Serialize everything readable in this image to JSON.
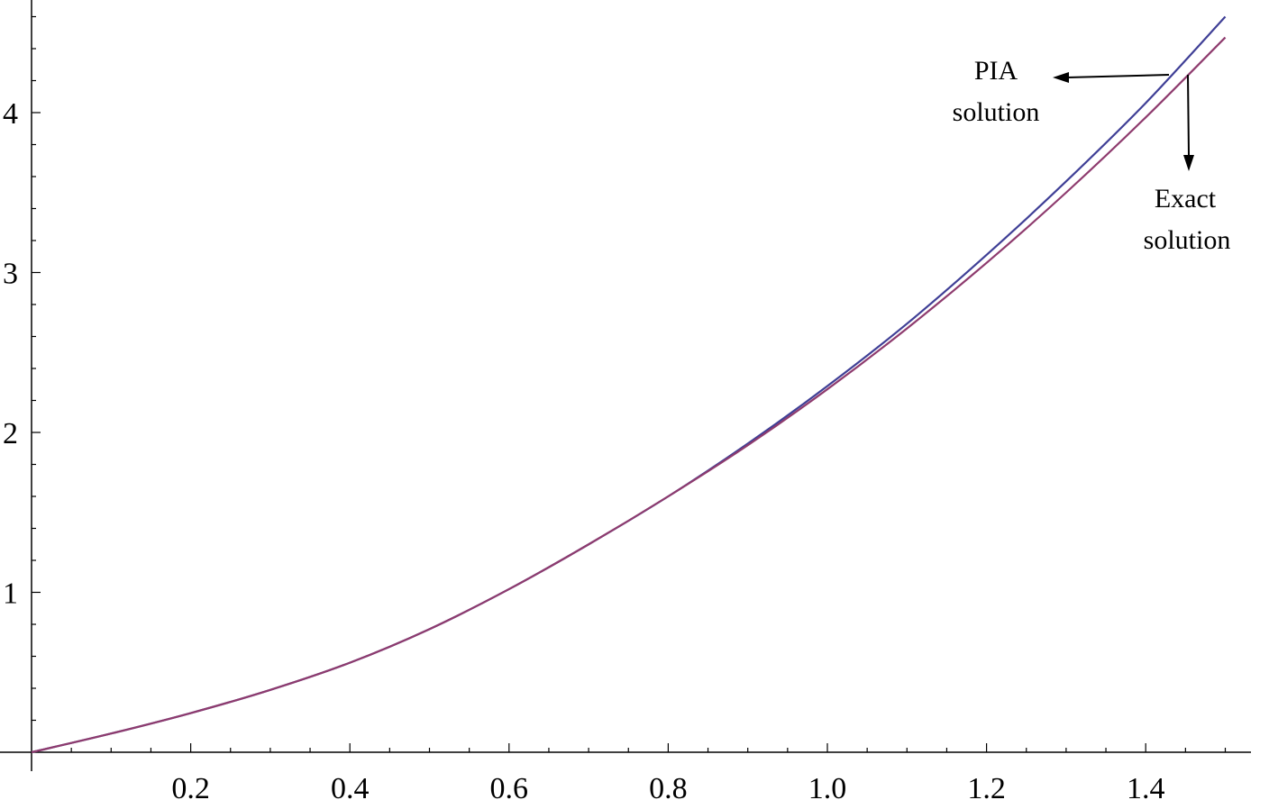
{
  "chart_data": {
    "type": "line",
    "title": "",
    "xlabel": "",
    "ylabel": "",
    "xlim": [
      0,
      1.52
    ],
    "ylim": [
      0,
      4.7
    ],
    "x_ticks": [
      0.2,
      0.4,
      0.6,
      0.8,
      1.0,
      1.2,
      1.4
    ],
    "x_tick_labels": [
      "0.2",
      "0.4",
      "0.6",
      "0.8",
      "1.0",
      "1.2",
      "1.4"
    ],
    "y_ticks": [
      1,
      2,
      3,
      4
    ],
    "y_tick_labels": [
      "1",
      "2",
      "3",
      "4"
    ],
    "grid": false,
    "series": [
      {
        "key": "pia",
        "color": "#3f3f96",
        "x": [
          0,
          0.1,
          0.2,
          0.3,
          0.4,
          0.5,
          0.6,
          0.7,
          0.8,
          0.9,
          1.0,
          1.1,
          1.2,
          1.3,
          1.4,
          1.5
        ],
        "y": [
          0,
          0.117,
          0.245,
          0.39,
          0.56,
          0.77,
          1.02,
          1.3,
          1.6,
          1.93,
          2.29,
          2.68,
          3.11,
          3.57,
          4.06,
          4.6
        ]
      },
      {
        "key": "exact",
        "color": "#8e3b6e",
        "x": [
          0,
          0.1,
          0.2,
          0.3,
          0.4,
          0.5,
          0.6,
          0.7,
          0.8,
          0.9,
          1.0,
          1.1,
          1.2,
          1.3,
          1.4,
          1.5
        ],
        "y": [
          0,
          0.117,
          0.245,
          0.39,
          0.56,
          0.77,
          1.02,
          1.3,
          1.6,
          1.92,
          2.27,
          2.65,
          3.06,
          3.5,
          3.97,
          4.47
        ]
      }
    ],
    "annotations": [
      {
        "key": "pia",
        "lines": [
          "PIA",
          "solution"
        ]
      },
      {
        "key": "exact",
        "lines": [
          "Exact",
          "solution"
        ]
      }
    ]
  }
}
